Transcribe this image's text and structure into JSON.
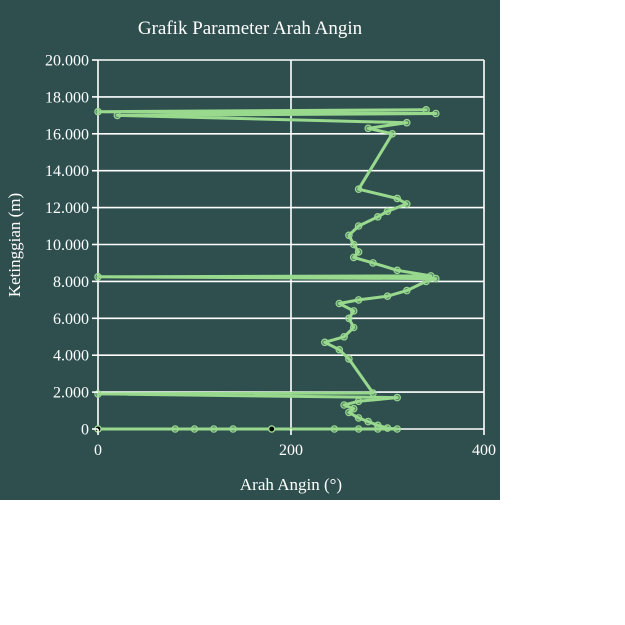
{
  "chart_data": {
    "type": "line",
    "title": "Grafik Parameter Arah Angin",
    "xlabel": "Arah Angin (°)",
    "ylabel": "Ketinggian (m)",
    "xlim": [
      0,
      400
    ],
    "ylim": [
      0,
      20000
    ],
    "x_ticks": [
      {
        "value": 0,
        "label": "0"
      },
      {
        "value": 200,
        "label": "200"
      },
      {
        "value": 400,
        "label": "400"
      }
    ],
    "y_ticks": [
      {
        "value": 0,
        "label": "0"
      },
      {
        "value": 2000,
        "label": "2.000"
      },
      {
        "value": 4000,
        "label": "4.000"
      },
      {
        "value": 6000,
        "label": "6.000"
      },
      {
        "value": 8000,
        "label": "8.000"
      },
      {
        "value": 10000,
        "label": "10.000"
      },
      {
        "value": 12000,
        "label": "12.000"
      },
      {
        "value": 14000,
        "label": "14.000"
      },
      {
        "value": 16000,
        "label": "16.000"
      },
      {
        "value": 18000,
        "label": "18.000"
      },
      {
        "value": 20000,
        "label": "20.000"
      }
    ],
    "grid": true,
    "colors": {
      "background": "#2f4f4f",
      "series": "#98d98e",
      "grid": "#ffffff",
      "text": "#ffffff"
    },
    "series": [
      {
        "points": [
          [
            0,
            0
          ],
          [
            80,
            0
          ],
          [
            100,
            0
          ],
          [
            120,
            0
          ],
          [
            140,
            0
          ],
          [
            180,
            0
          ],
          [
            245,
            0
          ],
          [
            270,
            0
          ],
          [
            290,
            0
          ],
          [
            310,
            0
          ],
          [
            300,
            50
          ],
          [
            290,
            200
          ],
          [
            280,
            400
          ],
          [
            270,
            600
          ],
          [
            260,
            900
          ],
          [
            265,
            1100
          ],
          [
            255,
            1300
          ],
          [
            270,
            1500
          ],
          [
            310,
            1700
          ],
          [
            0,
            1900
          ],
          [
            285,
            1950
          ],
          [
            260,
            3800
          ],
          [
            250,
            4300
          ],
          [
            235,
            4700
          ],
          [
            255,
            5000
          ],
          [
            265,
            5500
          ],
          [
            260,
            6000
          ],
          [
            265,
            6400
          ],
          [
            250,
            6800
          ],
          [
            270,
            7000
          ],
          [
            300,
            7200
          ],
          [
            320,
            7500
          ],
          [
            340,
            8000
          ],
          [
            350,
            8150
          ],
          [
            0,
            8250
          ],
          [
            345,
            8300
          ],
          [
            310,
            8600
          ],
          [
            285,
            9000
          ],
          [
            265,
            9300
          ],
          [
            270,
            9600
          ],
          [
            265,
            10000
          ],
          [
            260,
            10500
          ],
          [
            270,
            11000
          ],
          [
            290,
            11500
          ],
          [
            300,
            11800
          ],
          [
            320,
            12200
          ],
          [
            310,
            12500
          ],
          [
            270,
            13000
          ],
          [
            305,
            16000
          ],
          [
            280,
            16300
          ],
          [
            320,
            16600
          ],
          [
            20,
            17000
          ],
          [
            350,
            17100
          ],
          [
            0,
            17200
          ],
          [
            340,
            17300
          ]
        ]
      }
    ]
  }
}
